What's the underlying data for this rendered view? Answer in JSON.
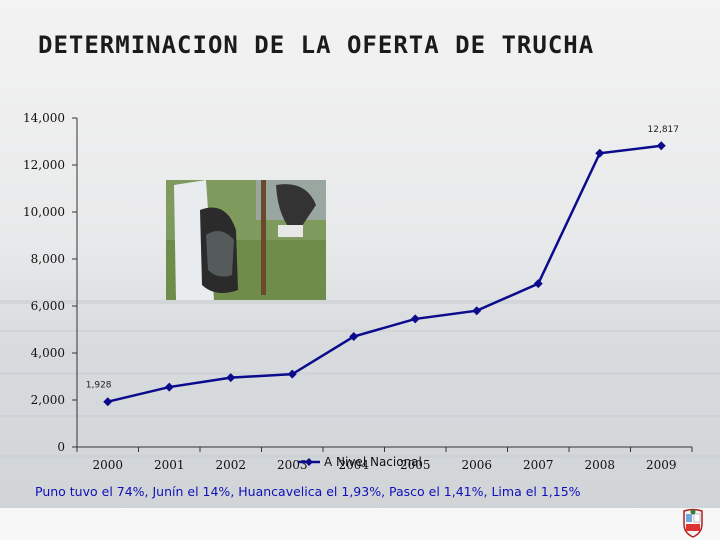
{
  "title": "DETERMINACION DE LA OFERTA DE TRUCHA",
  "footnote": "Puno tuvo el 74%, Junín el 14%, Huancavelica el 1,93%, Pasco el 1,41%, Lima el 1,15%",
  "colors": {
    "series": "#0b0b8c",
    "footnote": "#1010b8"
  },
  "chart_data": {
    "type": "line",
    "title": "",
    "xlabel": "",
    "ylabel": "",
    "categories": [
      "2000",
      "2001",
      "2002",
      "2003",
      "2004",
      "2005",
      "2006",
      "2007",
      "2008",
      "2009"
    ],
    "series": [
      {
        "name": "A Nivel Nacional",
        "values": [
          1928,
          2550,
          2950,
          3100,
          4700,
          5450,
          5800,
          6950,
          12500,
          12817
        ]
      }
    ],
    "ylim": [
      0,
      14000
    ],
    "yticks": [
      0,
      2000,
      4000,
      6000,
      8000,
      10000,
      12000,
      14000
    ],
    "ytick_labels": [
      "0",
      "2,000",
      "4,000",
      "6,000",
      "8,000",
      "10,000",
      "12,000",
      "14,000"
    ],
    "data_labels": [
      {
        "index": 0,
        "text": "1,928"
      },
      {
        "index": 9,
        "text": "12,817"
      }
    ],
    "legend": "bottom-center",
    "grid": false
  }
}
